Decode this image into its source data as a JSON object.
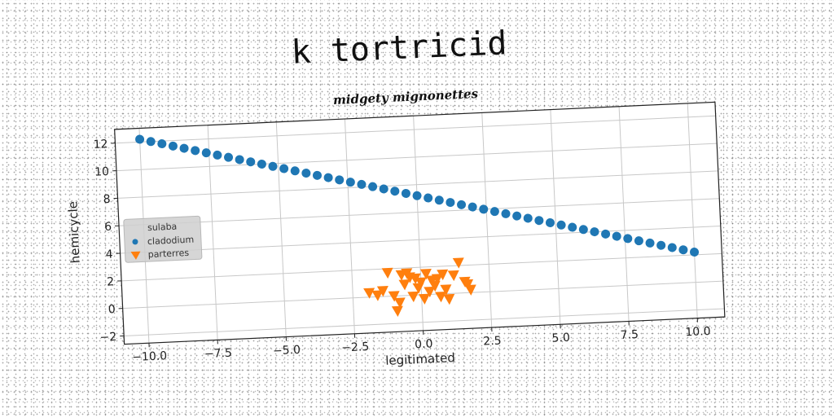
{
  "page_title": "k tortricid",
  "chart_data": {
    "type": "scatter",
    "title": "midgety mignonettes",
    "xlabel": "legitimated",
    "ylabel": "hemicycle",
    "xlim": [
      -10.9,
      11.0
    ],
    "ylim": [
      -2.6,
      13.0
    ],
    "xticks": [
      "−10.0",
      "−7.5",
      "−5.0",
      "−2.5",
      "0.0",
      "2.5",
      "5.0",
      "7.5",
      "10.0"
    ],
    "xtick_values": [
      -10,
      -7.5,
      -5,
      -2.5,
      0,
      2.5,
      5,
      7.5,
      10
    ],
    "yticks": [
      "−2",
      "0",
      "2",
      "4",
      "6",
      "8",
      "10",
      "12"
    ],
    "ytick_values": [
      -2,
      0,
      2,
      4,
      6,
      8,
      10,
      12
    ],
    "grid": true,
    "legend": {
      "title": "sulaba",
      "placement": "center-left"
    },
    "series": [
      {
        "name": "cladodium",
        "marker": "circle",
        "color": "#1f77b4",
        "x": [
          -10.0,
          -9.6,
          -9.2,
          -8.8,
          -8.4,
          -8.0,
          -7.6,
          -7.2,
          -6.8,
          -6.4,
          -6.0,
          -5.6,
          -5.2,
          -4.8,
          -4.4,
          -4.0,
          -3.6,
          -3.2,
          -2.8,
          -2.4,
          -2.0,
          -1.6,
          -1.2,
          -0.8,
          -0.4,
          0.0,
          0.4,
          0.8,
          1.2,
          1.6,
          2.0,
          2.4,
          2.8,
          3.2,
          3.6,
          4.0,
          4.4,
          4.8,
          5.2,
          5.6,
          6.0,
          6.4,
          6.8,
          7.2,
          7.6,
          8.0,
          8.4,
          8.8,
          9.2,
          9.6,
          10.0
        ],
        "y": [
          12.2,
          12.0,
          11.8,
          11.6,
          11.4,
          11.2,
          11.0,
          10.8,
          10.6,
          10.4,
          10.2,
          10.0,
          9.8,
          9.6,
          9.4,
          9.2,
          9.0,
          8.8,
          8.6,
          8.4,
          8.2,
          8.0,
          7.8,
          7.6,
          7.4,
          7.2,
          7.0,
          6.8,
          6.6,
          6.4,
          6.2,
          6.0,
          5.8,
          5.6,
          5.4,
          5.2,
          5.0,
          4.8,
          4.6,
          4.4,
          4.2,
          4.0,
          3.8,
          3.6,
          3.4,
          3.2,
          3.0,
          2.8,
          2.6,
          2.4,
          2.2
        ]
      },
      {
        "name": "parterres",
        "marker": "triangle-down",
        "color": "#ff7f0e",
        "x": [
          -1.9,
          -1.6,
          -1.4,
          -1.2,
          -1.0,
          -0.9,
          -0.7,
          -0.6,
          -0.4,
          -0.3,
          -0.2,
          -0.1,
          0.0,
          0.1,
          0.2,
          0.3,
          0.4,
          0.5,
          0.7,
          0.8,
          0.9,
          1.0,
          1.2,
          1.4,
          1.6,
          1.7,
          1.8,
          -0.8,
          0.6,
          -0.5
        ],
        "y": [
          0.3,
          0.1,
          0.4,
          1.7,
          0.0,
          -1.1,
          1.5,
          0.8,
          1.3,
          -0.1,
          1.2,
          0.5,
          0.9,
          -0.3,
          1.5,
          0.2,
          1.0,
          0.6,
          -0.2,
          1.4,
          0.3,
          -0.4,
          1.3,
          2.2,
          0.8,
          0.6,
          0.2,
          -0.5,
          1.1,
          1.6
        ]
      }
    ]
  }
}
